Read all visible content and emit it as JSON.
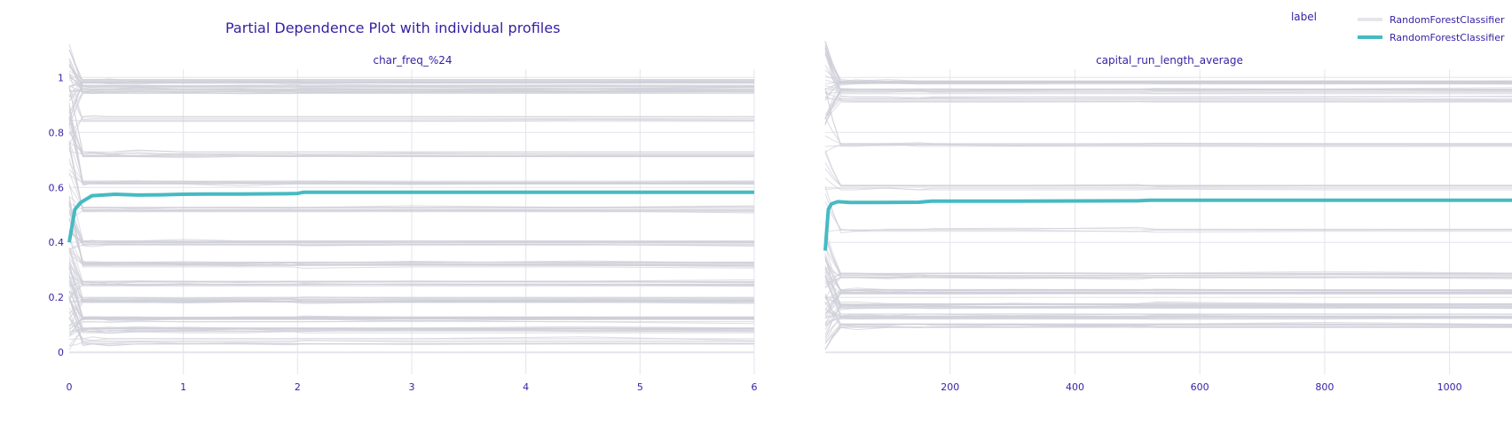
{
  "chart_data": {
    "type": "line",
    "title": "Partial Dependence Plot with individual profiles",
    "legend": {
      "title": "label",
      "placement": "top-right",
      "entries": [
        {
          "name": "RandomForestClassifier",
          "color": "#e6e6ea"
        },
        {
          "name": "RandomForestClassifier",
          "color": "#46bac2"
        }
      ]
    },
    "colors": {
      "profiles": "#ceced9",
      "pdp": "#46bac2",
      "text": "#371ea3",
      "grid": "#e4e4ed"
    },
    "panels": [
      {
        "subtitle": "char_freq_%24",
        "xlim": [
          0,
          6
        ],
        "ylim": [
          -0.08,
          1.03
        ],
        "x_ticks": [
          0,
          1,
          2,
          3,
          4,
          5,
          6
        ],
        "x_tick_labels": [
          "0",
          "1",
          "2",
          "3",
          "4",
          "5",
          "6"
        ],
        "y_ticks": [
          0,
          0.2,
          0.4,
          0.6,
          0.8,
          1
        ],
        "y_tick_labels": [
          "0",
          "0.2",
          "0.4",
          "0.6",
          "0.8",
          "1"
        ],
        "profile_bands": [
          {
            "start": 0.99,
            "end": 0.985,
            "count": 14
          },
          {
            "start": 0.98,
            "end": 0.965,
            "count": 10
          },
          {
            "start": 0.975,
            "end": 0.95,
            "count": 12
          },
          {
            "start": 0.9,
            "end": 0.85,
            "count": 6
          },
          {
            "start": 0.85,
            "end": 0.72,
            "count": 10
          },
          {
            "start": 0.78,
            "end": 0.62,
            "count": 10
          },
          {
            "start": 0.62,
            "end": 0.52,
            "count": 10
          },
          {
            "start": 0.5,
            "end": 0.4,
            "count": 12
          },
          {
            "start": 0.42,
            "end": 0.32,
            "count": 12
          },
          {
            "start": 0.33,
            "end": 0.25,
            "count": 12
          },
          {
            "start": 0.24,
            "end": 0.19,
            "count": 14
          },
          {
            "start": 0.18,
            "end": 0.12,
            "count": 16
          },
          {
            "start": 0.12,
            "end": 0.08,
            "count": 14
          },
          {
            "start": 0.06,
            "end": 0.04,
            "count": 8
          }
        ],
        "pdp": {
          "x": [
            0,
            0.05,
            0.1,
            0.2,
            0.4,
            0.6,
            0.8,
            1.0,
            1.2,
            1.5,
            1.9,
            2.0,
            2.05,
            3,
            4,
            5,
            6
          ],
          "y": [
            0.4,
            0.52,
            0.545,
            0.57,
            0.575,
            0.572,
            0.573,
            0.575,
            0.576,
            0.576,
            0.577,
            0.578,
            0.582,
            0.582,
            0.582,
            0.582,
            0.582
          ]
        }
      },
      {
        "subtitle": "capital_run_length_average",
        "xlim": [
          0,
          1100
        ],
        "ylim": [
          -0.08,
          1.03
        ],
        "x_ticks": [
          200,
          400,
          600,
          800,
          1000
        ],
        "x_tick_labels": [
          "200",
          "400",
          "600",
          "800",
          "1000"
        ],
        "y_ticks": [
          0,
          0.2,
          0.4,
          0.6,
          0.8,
          1
        ],
        "y_tick_labels": [],
        "profile_bands": [
          {
            "start": 0.99,
            "end": 0.98,
            "count": 16
          },
          {
            "start": 0.97,
            "end": 0.95,
            "count": 12
          },
          {
            "start": 0.95,
            "end": 0.92,
            "count": 8
          },
          {
            "start": 0.85,
            "end": 0.75,
            "count": 6
          },
          {
            "start": 0.72,
            "end": 0.6,
            "count": 6
          },
          {
            "start": 0.5,
            "end": 0.45,
            "count": 4
          },
          {
            "start": 0.3,
            "end": 0.28,
            "count": 12
          },
          {
            "start": 0.25,
            "end": 0.22,
            "count": 14
          },
          {
            "start": 0.2,
            "end": 0.17,
            "count": 14
          },
          {
            "start": 0.15,
            "end": 0.13,
            "count": 14
          },
          {
            "start": 0.08,
            "end": 0.1,
            "count": 10
          }
        ],
        "pdp": {
          "x": [
            0,
            5,
            10,
            20,
            40,
            80,
            150,
            170,
            250,
            500,
            520,
            700,
            900,
            1100
          ],
          "y": [
            0.37,
            0.52,
            0.54,
            0.548,
            0.545,
            0.545,
            0.546,
            0.55,
            0.55,
            0.551,
            0.553,
            0.553,
            0.553,
            0.553
          ]
        }
      }
    ]
  }
}
